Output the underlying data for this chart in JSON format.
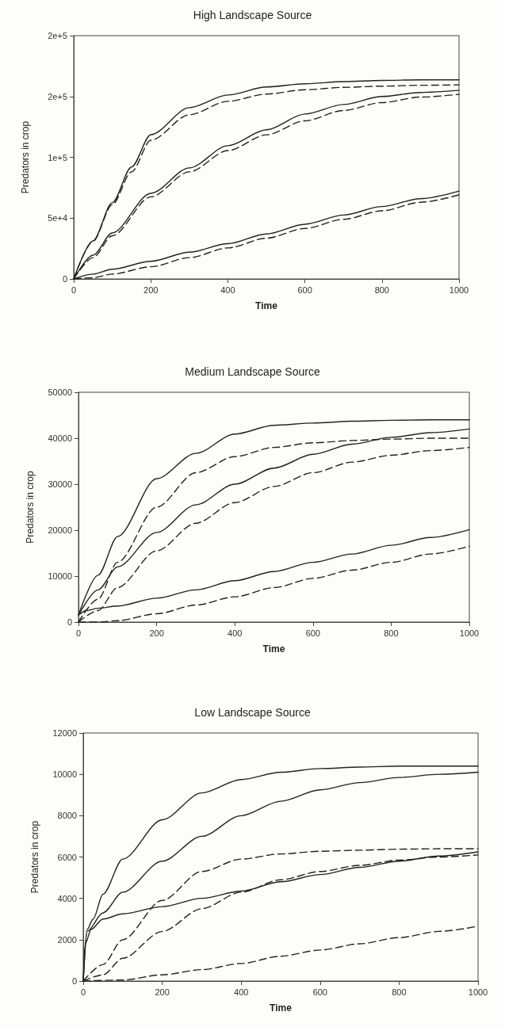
{
  "chart_data": [
    {
      "type": "line",
      "title": "High Landscape Source",
      "xlabel": "Time",
      "ylabel": "Predators in crop",
      "xlim": [
        0,
        1000
      ],
      "xticks": [
        0,
        200,
        400,
        600,
        800,
        1000
      ],
      "ylim": [
        0,
        200000
      ],
      "yticks": [
        0,
        {
          "value": 50000,
          "label": "5e+4"
        },
        {
          "value": 100000,
          "label": "1e+5"
        },
        {
          "value": 150000,
          "label": "2e+5"
        },
        {
          "value": 200000,
          "label": "2e+5"
        }
      ],
      "grid": false,
      "marker": "none",
      "series": [
        {
          "color": "#222222",
          "line_style": "solid",
          "x": [
            0,
            50,
            100,
            150,
            200,
            300,
            400,
            500,
            600,
            700,
            800,
            900,
            1000
          ],
          "values": [
            0,
            31300,
            62600,
            92000,
            118600,
            140800,
            151200,
            157800,
            160400,
            162200,
            163200,
            163700,
            163700
          ]
        },
        {
          "color": "#222222",
          "line_style": "dashed",
          "x": [
            0,
            50,
            100,
            150,
            200,
            300,
            400,
            500,
            600,
            700,
            800,
            900,
            1000
          ],
          "values": [
            0,
            31000,
            61000,
            88000,
            114000,
            135000,
            146000,
            152000,
            155500,
            157500,
            158500,
            159200,
            159600
          ]
        },
        {
          "color": "#222222",
          "line_style": "solid",
          "x": [
            0,
            50,
            100,
            200,
            300,
            400,
            500,
            600,
            700,
            800,
            900,
            1000
          ],
          "values": [
            0,
            19500,
            37800,
            70400,
            91300,
            109500,
            122600,
            135600,
            143400,
            150000,
            153300,
            155100
          ]
        },
        {
          "color": "#222222",
          "line_style": "dashed",
          "x": [
            0,
            50,
            100,
            200,
            300,
            400,
            500,
            600,
            700,
            800,
            900,
            1000
          ],
          "values": [
            0,
            17500,
            35500,
            67500,
            88000,
            105500,
            118500,
            130000,
            138500,
            145000,
            149500,
            151800
          ]
        },
        {
          "color": "#222222",
          "line_style": "solid",
          "x": [
            0,
            50,
            100,
            200,
            300,
            400,
            500,
            600,
            700,
            800,
            900,
            1000
          ],
          "values": [
            0,
            4000,
            8000,
            14500,
            22000,
            29000,
            37000,
            45000,
            52500,
            59500,
            66000,
            72200
          ]
        },
        {
          "color": "#222222",
          "line_style": "dashed",
          "x": [
            0,
            50,
            100,
            200,
            300,
            400,
            500,
            600,
            700,
            800,
            900,
            1000
          ],
          "values": [
            0,
            1000,
            4000,
            10000,
            17500,
            25500,
            33500,
            41500,
            49000,
            56000,
            63000,
            69100
          ]
        }
      ]
    },
    {
      "type": "line",
      "title": "Medium Landscape Source",
      "xlabel": "Time",
      "ylabel": "Predators in crop",
      "xlim": [
        0,
        1000
      ],
      "xticks": [
        0,
        200,
        400,
        600,
        800,
        1000
      ],
      "ylim": [
        0,
        50000
      ],
      "yticks": [
        0,
        10000,
        20000,
        30000,
        40000,
        50000
      ],
      "grid": false,
      "marker": "none",
      "series": [
        {
          "color": "#222222",
          "line_style": "solid",
          "x": [
            0,
            50,
            100,
            200,
            300,
            400,
            500,
            600,
            700,
            800,
            900,
            1000
          ],
          "values": [
            1500,
            10200,
            18600,
            31200,
            36700,
            40900,
            42800,
            43300,
            43700,
            43900,
            44000,
            44000
          ]
        },
        {
          "color": "#222222",
          "line_style": "dashed",
          "x": [
            0,
            50,
            100,
            200,
            300,
            400,
            500,
            600,
            700,
            800,
            900,
            1000
          ],
          "values": [
            0,
            5000,
            13000,
            25000,
            32500,
            36000,
            38000,
            39000,
            39500,
            39800,
            40000,
            40000
          ]
        },
        {
          "color": "#222222",
          "line_style": "solid",
          "x": [
            0,
            50,
            100,
            200,
            300,
            400,
            500,
            600,
            700,
            800,
            900,
            1000
          ],
          "values": [
            1500,
            7000,
            12000,
            19500,
            25500,
            30000,
            33500,
            36500,
            38700,
            40200,
            41200,
            42000
          ]
        },
        {
          "color": "#222222",
          "line_style": "dashed",
          "x": [
            0,
            50,
            100,
            200,
            300,
            400,
            500,
            600,
            700,
            800,
            900,
            1000
          ],
          "values": [
            0,
            2500,
            7500,
            15500,
            21500,
            26000,
            29500,
            32500,
            34800,
            36300,
            37300,
            38000
          ]
        },
        {
          "color": "#222222",
          "line_style": "solid",
          "x": [
            0,
            20,
            50,
            100,
            200,
            300,
            400,
            500,
            600,
            700,
            800,
            900,
            1000
          ],
          "values": [
            1500,
            2500,
            3000,
            3500,
            5200,
            7000,
            9000,
            11000,
            13000,
            14800,
            16700,
            18400,
            20100
          ]
        },
        {
          "color": "#222222",
          "line_style": "dashed",
          "x": [
            0,
            50,
            100,
            200,
            300,
            400,
            500,
            600,
            700,
            800,
            900,
            1000
          ],
          "values": [
            0,
            0,
            300,
            1800,
            3700,
            5500,
            7500,
            9500,
            11300,
            13000,
            14800,
            16500
          ]
        }
      ]
    },
    {
      "type": "line",
      "title": "Low Landscape Source",
      "xlabel": "Time",
      "ylabel": "Predators in crop",
      "xlim": [
        0,
        1000
      ],
      "xticks": [
        0,
        200,
        400,
        600,
        800,
        1000
      ],
      "ylim": [
        0,
        12000
      ],
      "yticks": [
        0,
        2000,
        4000,
        6000,
        8000,
        10000,
        12000
      ],
      "grid": false,
      "marker": "none",
      "series": [
        {
          "color": "#222222",
          "line_style": "solid",
          "x": [
            0,
            10,
            25,
            50,
            100,
            200,
            300,
            400,
            500,
            600,
            700,
            800,
            900,
            1000
          ],
          "values": [
            0,
            2500,
            3000,
            4200,
            5900,
            7800,
            9100,
            9750,
            10100,
            10280,
            10350,
            10400,
            10400,
            10400
          ]
        },
        {
          "color": "#222222",
          "line_style": "solid",
          "x": [
            0,
            10,
            50,
            100,
            200,
            300,
            400,
            500,
            600,
            700,
            800,
            900,
            1000
          ],
          "values": [
            0,
            2400,
            3300,
            4300,
            5800,
            7000,
            8000,
            8700,
            9250,
            9600,
            9850,
            10000,
            10100
          ]
        },
        {
          "color": "#222222",
          "line_style": "solid",
          "x": [
            0,
            5,
            20,
            50,
            100,
            200,
            300,
            400,
            500,
            600,
            700,
            800,
            900,
            1000
          ],
          "values": [
            0,
            1800,
            2500,
            3000,
            3250,
            3600,
            4000,
            4350,
            4800,
            5150,
            5500,
            5800,
            6050,
            6250
          ]
        },
        {
          "color": "#222222",
          "line_style": "dashed",
          "x": [
            0,
            50,
            100,
            200,
            300,
            400,
            500,
            600,
            700,
            800,
            900,
            1000
          ],
          "values": [
            0,
            800,
            2000,
            3900,
            5300,
            5900,
            6150,
            6280,
            6330,
            6380,
            6400,
            6400
          ]
        },
        {
          "color": "#222222",
          "line_style": "dashed",
          "x": [
            0,
            50,
            100,
            200,
            300,
            400,
            500,
            600,
            700,
            800,
            900,
            1000
          ],
          "values": [
            0,
            300,
            1100,
            2400,
            3500,
            4300,
            4900,
            5300,
            5600,
            5850,
            6000,
            6100
          ]
        },
        {
          "color": "#222222",
          "line_style": "dashed",
          "x": [
            0,
            100,
            200,
            300,
            400,
            500,
            600,
            700,
            800,
            900,
            1000
          ],
          "values": [
            0,
            50,
            300,
            550,
            850,
            1200,
            1500,
            1800,
            2100,
            2400,
            2650
          ]
        }
      ]
    }
  ]
}
